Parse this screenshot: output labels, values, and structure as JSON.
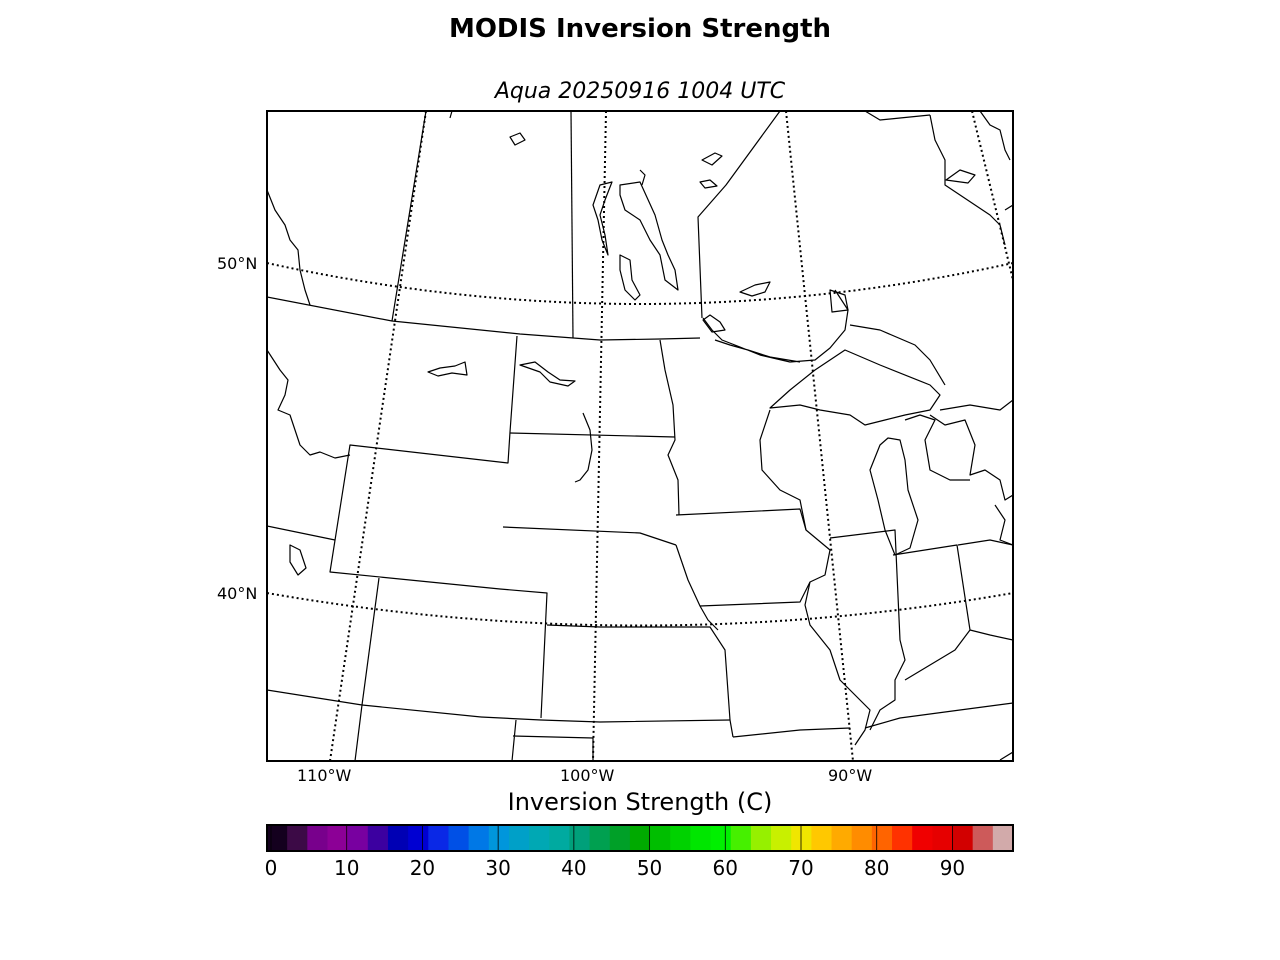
{
  "title": "MODIS Inversion Strength",
  "subtitle": "Aqua 20250916 1004 UTC",
  "map": {
    "projection_lines": "dotted",
    "latitude_labels": [
      "50°N",
      "40°N"
    ],
    "longitude_labels": [
      "110°W",
      "100°W",
      "90°W"
    ]
  },
  "colorbar": {
    "title": "Inversion Strength (C)",
    "ticks": [
      "0",
      "10",
      "20",
      "30",
      "40",
      "50",
      "60",
      "70",
      "80",
      "90"
    ],
    "range": [
      0,
      98
    ],
    "colors": [
      "#14001e",
      "#3c0a46",
      "#78008c",
      "#8c0096",
      "#7800a0",
      "#3c00a0",
      "#0000b4",
      "#0000d2",
      "#0a28e6",
      "#0050e6",
      "#0078e6",
      "#0096dc",
      "#00a0c8",
      "#00a8b4",
      "#00aaa0",
      "#00a07a",
      "#00a050",
      "#00a028",
      "#00aa00",
      "#00be00",
      "#00d200",
      "#00e600",
      "#00f000",
      "#46f000",
      "#96f000",
      "#c8f000",
      "#f0e600",
      "#ffc800",
      "#ffaa00",
      "#ff8c00",
      "#ff6400",
      "#ff3200",
      "#f00000",
      "#e60000",
      "#d20000",
      "#cd5a5a",
      "#d2aaaa"
    ]
  }
}
